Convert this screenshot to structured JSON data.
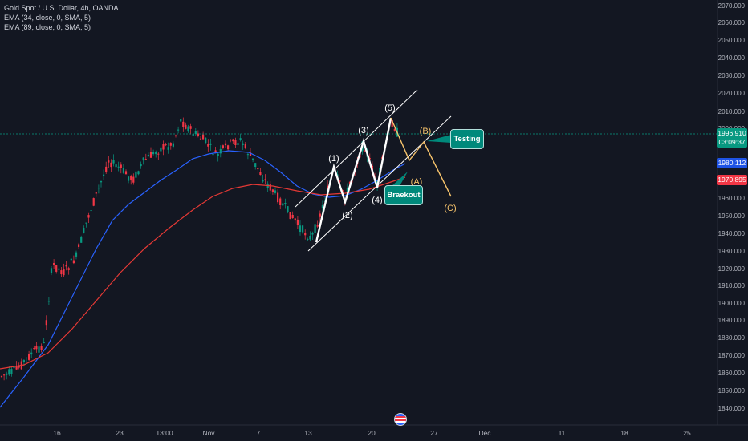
{
  "legend": {
    "symbol": "Gold Spot / U.S. Dollar, 4h, OANDA",
    "ema1": "EMA (34, close, 0, SMA, 5)",
    "ema2": "EMA (89, close, 0, SMA, 5)"
  },
  "price_axis": [
    "2070.000",
    "2060.000",
    "2050.000",
    "2040.000",
    "2030.000",
    "2020.000",
    "2010.000",
    "2000.000",
    "1990.000",
    "1970.000",
    "1960.000",
    "1950.000",
    "1940.000",
    "1930.000",
    "1920.000",
    "1910.000",
    "1900.000",
    "1890.000",
    "1880.000",
    "1870.000",
    "1860.000",
    "1850.000",
    "1840.000"
  ],
  "time_axis": [
    "16",
    "23",
    "13:00",
    "Nov",
    "7",
    "13",
    "20",
    "27",
    "Dec",
    "11",
    "18",
    "25"
  ],
  "tags": {
    "current_price": "1996.910",
    "countdown": "03:09:37",
    "ema_blue": "1980.112",
    "ema_red": "1970.895"
  },
  "waves": {
    "w1": "(1)",
    "w2": "(2)",
    "w3": "(3)",
    "w4": "(4)",
    "w5": "(5)",
    "wa": "(A)",
    "wb": "(B)",
    "wc": "(C)"
  },
  "callouts": {
    "breakout": "Braekout",
    "testing": "Testing"
  },
  "colors": {
    "background": "#131722",
    "up": "#089981",
    "down": "#f23645",
    "ema_fast": "#2962ff",
    "ema_slow": "#e53935",
    "wave_labels": "#ffffff",
    "abc": "#f5c26b"
  },
  "icons": [
    "us-flag-icon"
  ]
}
